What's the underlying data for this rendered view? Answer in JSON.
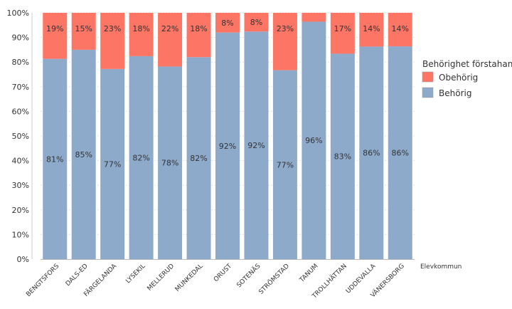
{
  "chart_data": {
    "type": "bar",
    "stacked": true,
    "categories": [
      "BENGTSFORS",
      "DALS-ED",
      "FÄRGELANDA",
      "LYSEKIL",
      "MELLERUD",
      "MUNKEDAL",
      "ORUST",
      "SOTENÄS",
      "STRÖMSTAD",
      "TANUM",
      "TROLLHÄTTAN",
      "UDDEVALLA",
      "VÄNERSBORG"
    ],
    "series": [
      {
        "name": "Behörig",
        "color": "#8eaacb",
        "values": [
          81.3,
          85,
          77.2,
          82.4,
          78.2,
          82,
          92,
          92.4,
          76.7,
          96.4,
          83.4,
          86.3,
          86.4
        ],
        "labels": [
          "81%",
          "85%",
          "77%",
          "82%",
          "78%",
          "82%",
          "92%",
          "92%",
          "77%",
          "96%",
          "83%",
          "86%",
          "86%"
        ]
      },
      {
        "name": "Obehörig",
        "color": "#fc7565",
        "values": [
          18.7,
          15,
          22.8,
          17.6,
          21.8,
          18,
          8,
          7.6,
          23.3,
          3.6,
          16.6,
          13.7,
          13.6
        ],
        "labels": [
          "19%",
          "15%",
          "23%",
          "18%",
          "22%",
          "18%",
          "8%",
          "8%",
          "23%",
          "",
          "17%",
          "14%",
          "14%"
        ]
      }
    ],
    "xlabel": "Elevkommun",
    "ylim": [
      0,
      100
    ],
    "yticks": [
      "0%",
      "10%",
      "20%",
      "30%",
      "40%",
      "50%",
      "60%",
      "70%",
      "80%",
      "90%",
      "100%"
    ],
    "grid": true,
    "legend": {
      "title": "Behörighet förstahandsval",
      "placement": "right",
      "entries": [
        {
          "name": "Obehörig",
          "color": "#fc7565"
        },
        {
          "name": "Behörig",
          "color": "#8eaacb"
        }
      ]
    }
  }
}
